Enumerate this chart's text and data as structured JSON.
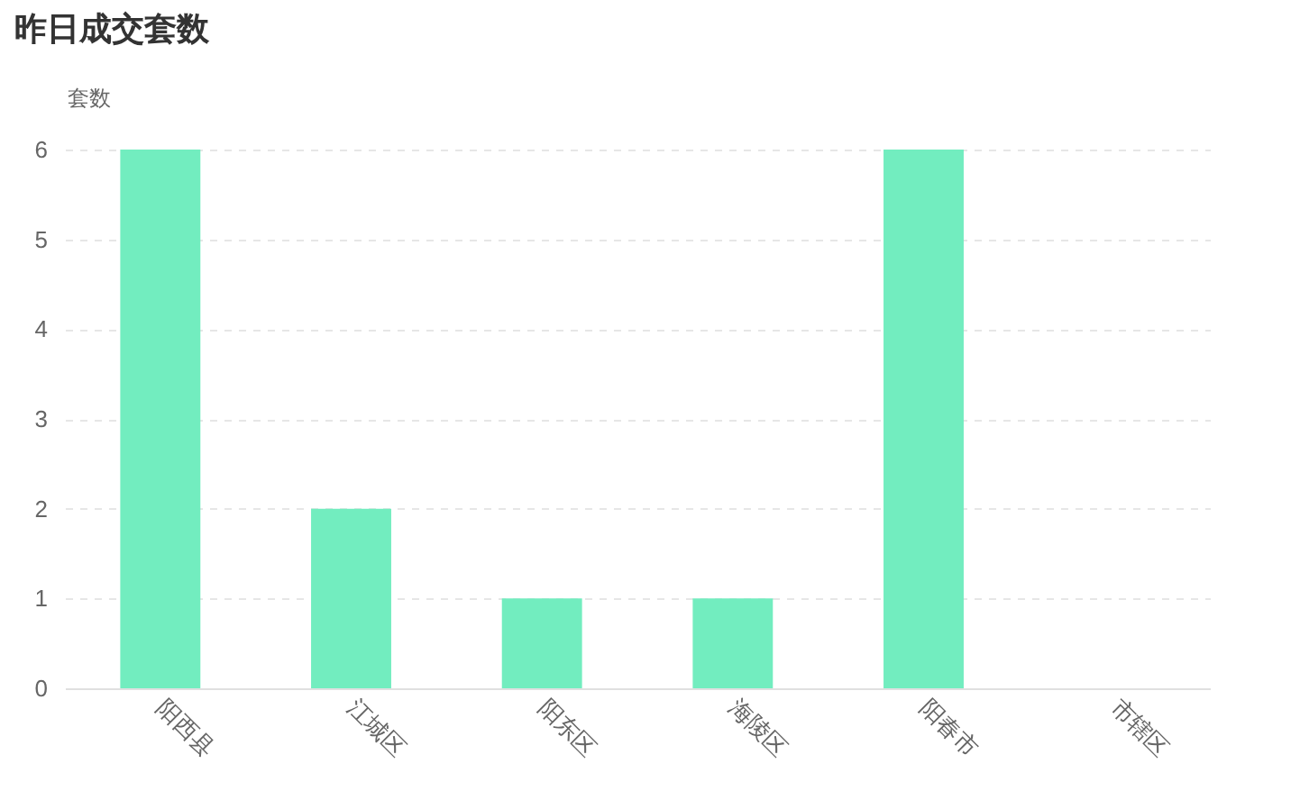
{
  "chart_data": {
    "type": "bar",
    "title": "昨日成交套数",
    "ylabel": "套数",
    "categories": [
      "阳西县",
      "江城区",
      "阳东区",
      "海陵区",
      "阳春市",
      "市辖区"
    ],
    "values": [
      6,
      2,
      1,
      1,
      6,
      0
    ],
    "color": "#72edbf",
    "ylim": [
      0,
      6
    ],
    "yticks": [
      0,
      1,
      2,
      3,
      4,
      5,
      6
    ],
    "grid": "y"
  }
}
